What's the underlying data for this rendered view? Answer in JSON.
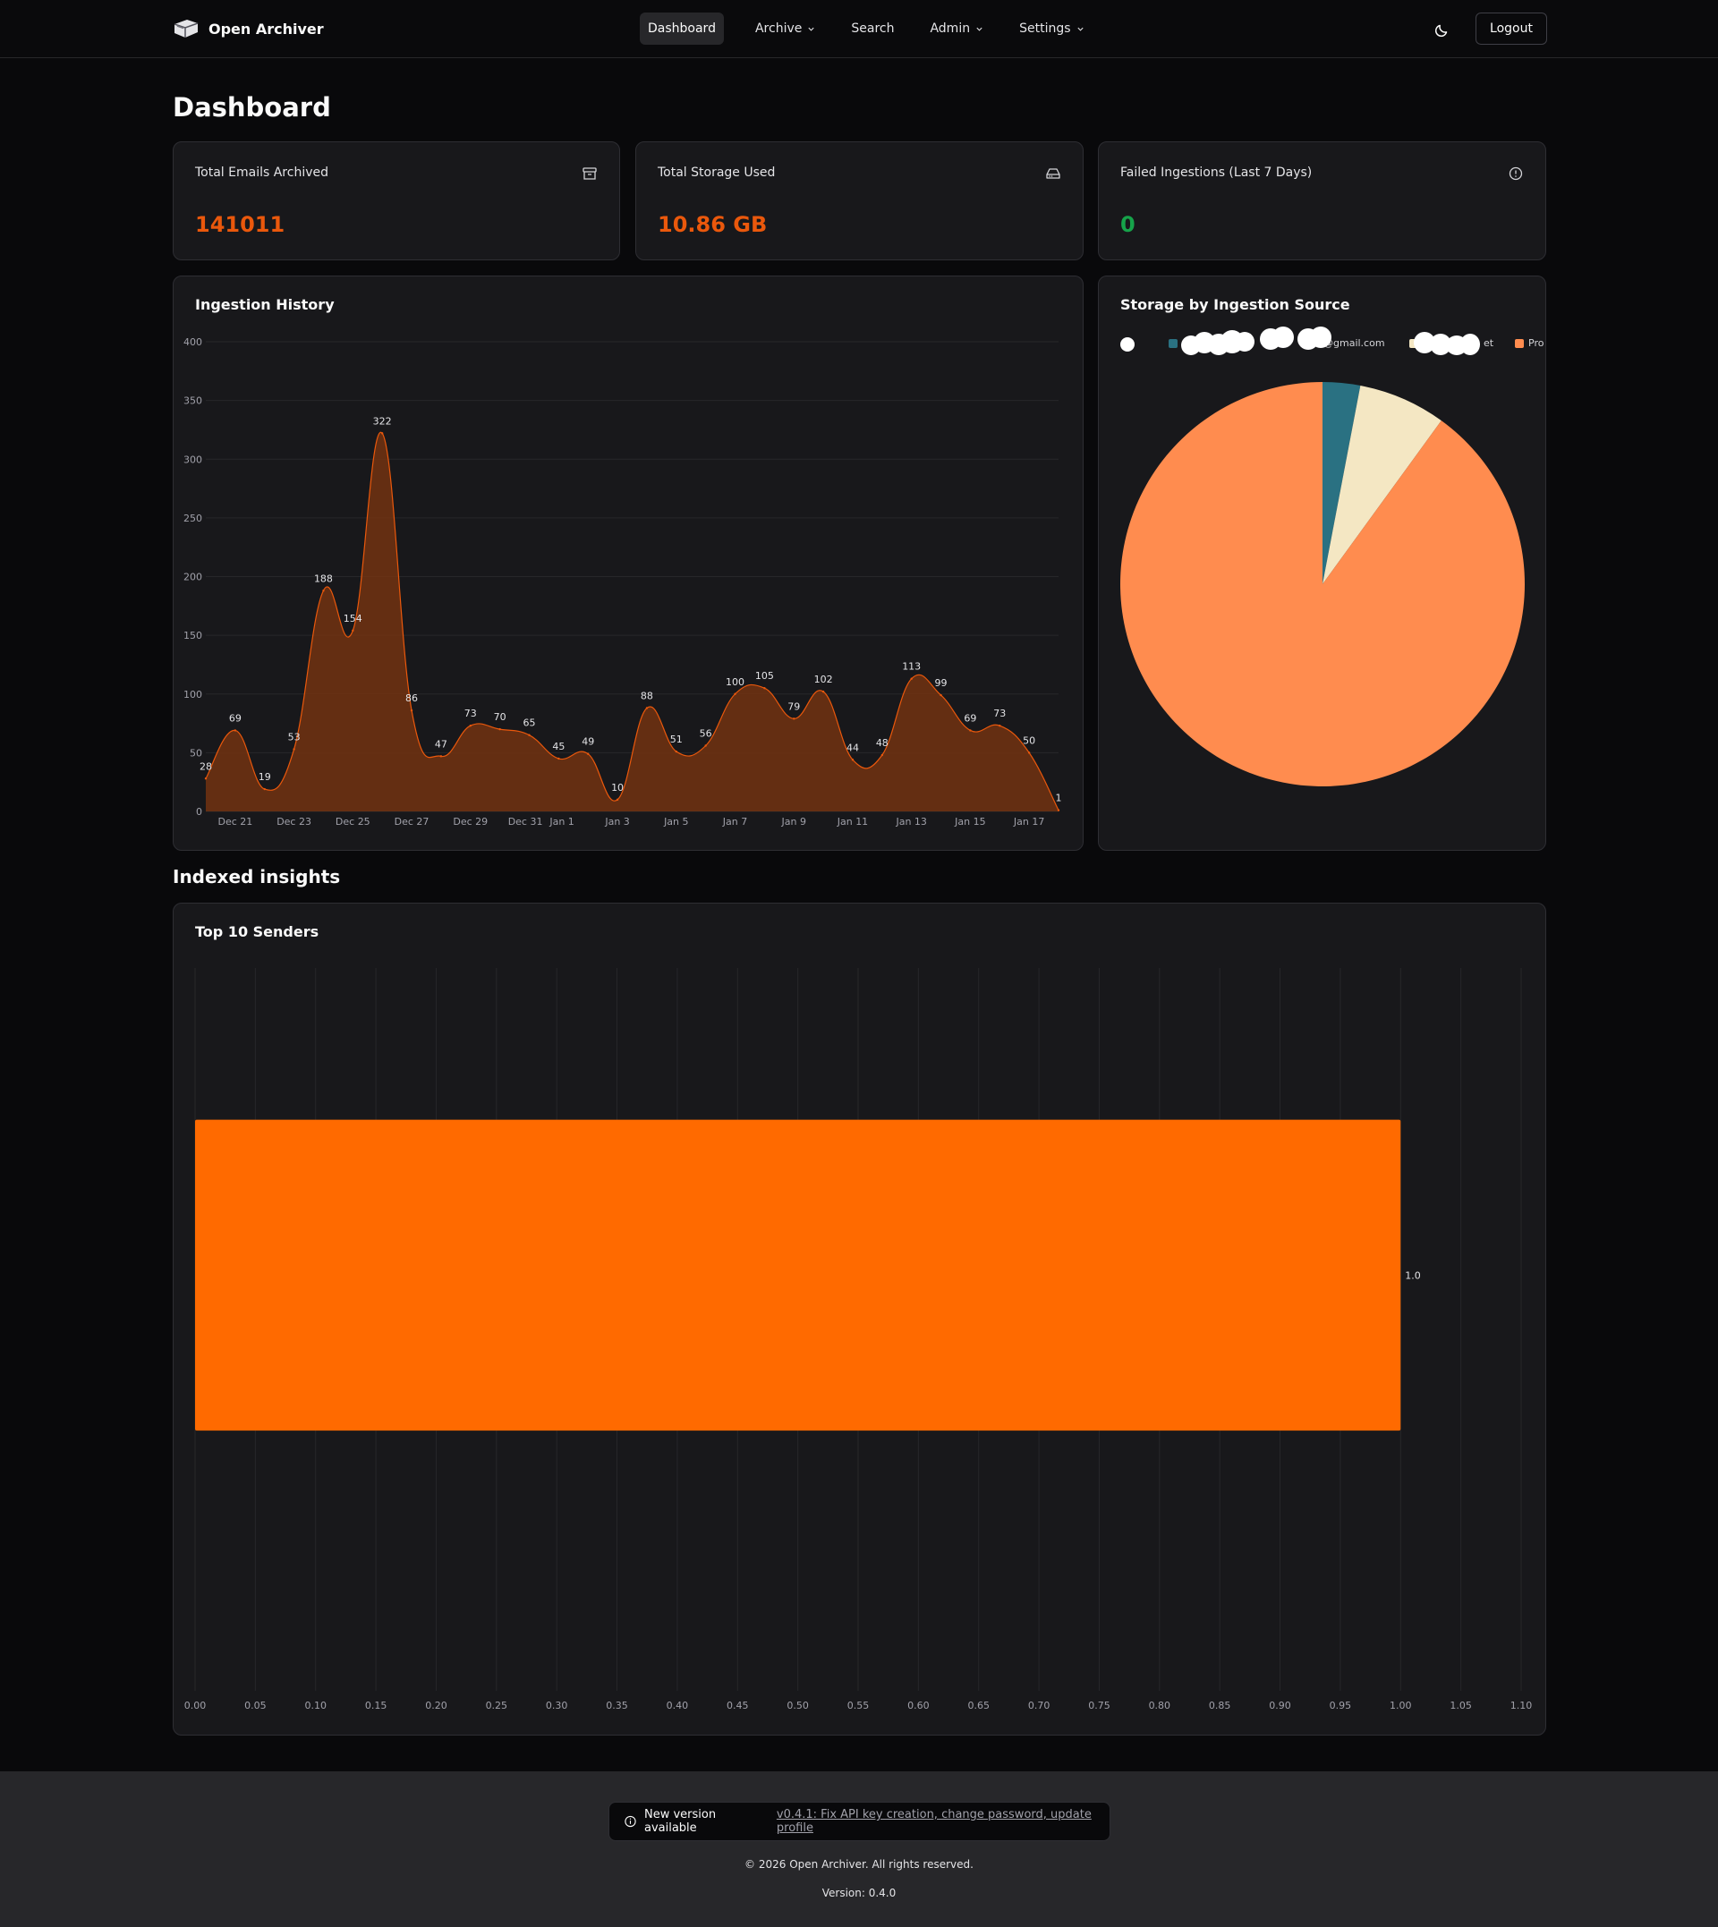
{
  "app": {
    "name": "Open Archiver",
    "logo_icon": "archive-box-logo-icon"
  },
  "nav": {
    "items": [
      {
        "label": "Dashboard",
        "active": true,
        "has_dropdown": false
      },
      {
        "label": "Archive",
        "active": false,
        "has_dropdown": true
      },
      {
        "label": "Search",
        "active": false,
        "has_dropdown": false
      },
      {
        "label": "Admin",
        "active": false,
        "has_dropdown": true
      },
      {
        "label": "Settings",
        "active": false,
        "has_dropdown": true
      }
    ],
    "theme_toggle_icon": "moon-icon",
    "logout_label": "Logout"
  },
  "page": {
    "title": "Dashboard"
  },
  "stats": [
    {
      "label": "Total Emails Archived",
      "value": "141011",
      "icon": "archive-icon",
      "color": "#ea580c"
    },
    {
      "label": "Total Storage Used",
      "value": "10.86 GB",
      "icon": "hard-drive-icon",
      "color": "#ea580c"
    },
    {
      "label": "Failed Ingestions (Last 7 Days)",
      "value": "0",
      "icon": "alert-circle-icon",
      "color": "#16a34a"
    }
  ],
  "ingestion_history": {
    "title": "Ingestion History"
  },
  "storage_by_source": {
    "title": "Storage by Ingestion Source",
    "legend": [
      {
        "label": "",
        "color": "#ffffff",
        "redacted": true
      },
      {
        "label": "@gmail.com",
        "color": "#2a7182"
      },
      {
        "label": "et",
        "color": "#f4e7c3"
      },
      {
        "label": "Pro",
        "color": "#ff8c4f"
      }
    ]
  },
  "insights": {
    "title": "Indexed insights",
    "top_senders_title": "Top 10 Senders"
  },
  "chart_data": [
    {
      "type": "area",
      "title": "Ingestion History",
      "x_ticks": [
        "Dec 21",
        "Dec 23",
        "Dec 25",
        "Dec 27",
        "Dec 29",
        "Dec 31",
        "Jan 1",
        "Jan 3",
        "Jan 5",
        "Jan 7",
        "Jan 9",
        "Jan 11",
        "Jan 13",
        "Jan 15",
        "Jan 17"
      ],
      "x": [
        "Dec 20",
        "Dec 21",
        "Dec 22",
        "Dec 23",
        "Dec 24",
        "Dec 25",
        "Dec 26",
        "Dec 27",
        "Dec 28",
        "Dec 29",
        "Dec 30",
        "Dec 31",
        "Jan 1",
        "Jan 2",
        "Jan 3",
        "Jan 4",
        "Jan 5",
        "Jan 6",
        "Jan 7",
        "Jan 8",
        "Jan 9",
        "Jan 10",
        "Jan 11",
        "Jan 12",
        "Jan 13",
        "Jan 14",
        "Jan 15",
        "Jan 16",
        "Jan 17",
        "Jan 18"
      ],
      "values": [
        28,
        69,
        19,
        53,
        188,
        154,
        322,
        86,
        47,
        73,
        70,
        65,
        45,
        49,
        10,
        88,
        51,
        56,
        100,
        105,
        79,
        102,
        44,
        48,
        113,
        99,
        69,
        73,
        50,
        1
      ],
      "ylim": [
        0,
        400
      ],
      "y_ticks": [
        0,
        50,
        100,
        150,
        200,
        250,
        300,
        350,
        400
      ],
      "grid": true,
      "color": "#ea580c"
    },
    {
      "type": "pie",
      "title": "Storage by Ingestion Source",
      "labels": [
        "@gmail.com",
        "et",
        "Pro"
      ],
      "values": [
        3.0,
        7.0,
        90.0
      ],
      "colors": [
        "#2a7182",
        "#f4e7c3",
        "#ff8c4f"
      ],
      "legend": "top"
    },
    {
      "type": "bar",
      "orientation": "horizontal",
      "title": "Top 10 Senders",
      "values": [
        1.0
      ],
      "data_labels": [
        "1.0"
      ],
      "xlim": [
        0,
        1.1
      ],
      "x_ticks": [
        "0.00",
        "0.05",
        "0.10",
        "0.15",
        "0.20",
        "0.25",
        "0.30",
        "0.35",
        "0.40",
        "0.45",
        "0.50",
        "0.55",
        "0.60",
        "0.65",
        "0.70",
        "0.75",
        "0.80",
        "0.85",
        "0.90",
        "0.95",
        "1.00",
        "1.05",
        "1.10"
      ],
      "grid": true,
      "color": "#ff6a00"
    }
  ],
  "footer": {
    "notice_icon": "info-icon",
    "notice_text": "New version available",
    "notice_link": "v0.4.1: Fix API key creation, change password, update profile",
    "copyright": "© 2026 Open Archiver. All rights reserved.",
    "version": "Version: 0.4.0"
  }
}
